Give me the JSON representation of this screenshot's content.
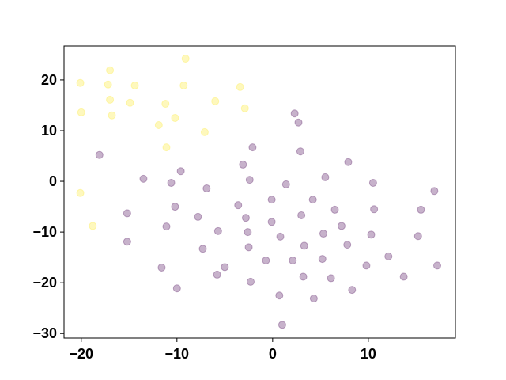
{
  "chart_data": {
    "type": "scatter",
    "xlim": [
      -21.8,
      19.1
    ],
    "ylim": [
      -30.9,
      26.7
    ],
    "xticks": [
      {
        "value": -20,
        "label": "−20"
      },
      {
        "value": -10,
        "label": "−10"
      },
      0,
      10
    ],
    "yticks": [
      {
        "value": -30,
        "label": "−30"
      },
      {
        "value": -20,
        "label": "−20"
      },
      {
        "value": -10,
        "label": "−10"
      },
      0,
      10,
      20
    ],
    "alpha": 0.3,
    "series": [
      {
        "color": "#fde725",
        "x": [
          -20.1,
          -20.0,
          -17.0,
          -17.2,
          -17.0,
          -16.8,
          -14.4,
          -14.9,
          -9.1,
          -9.3,
          -11.2,
          -10.2,
          -11.9,
          -11.1,
          -6.0,
          -7.1,
          -3.4,
          -2.9,
          -20.1,
          -18.8
        ],
        "y": [
          19.4,
          13.6,
          21.9,
          19.1,
          16.1,
          13.0,
          18.9,
          15.5,
          24.2,
          18.9,
          15.3,
          12.5,
          11.1,
          6.7,
          15.8,
          9.7,
          18.6,
          14.4,
          -2.3,
          -8.8
        ]
      },
      {
        "color": "#440154",
        "x": [
          -18.1,
          -13.5,
          -15.2,
          -15.2,
          -9.6,
          -10.6,
          -10.2,
          -11.1,
          -11.6,
          -10.0,
          -6.9,
          -7.8,
          -7.3,
          -5.7,
          -5.0,
          -5.8,
          -2.1,
          -3.1,
          -2.4,
          -3.6,
          -2.8,
          -2.6,
          -2.5,
          -2.3,
          -0.7,
          -0.1,
          -0.1,
          0.8,
          0.7,
          1.0,
          1.4,
          2.3,
          2.7,
          2.9,
          3.0,
          3.3,
          2.1,
          3.2,
          4.2,
          4.3,
          5.5,
          5.3,
          5.2,
          6.1,
          6.5,
          7.2,
          7.8,
          8.3,
          7.9,
          10.5,
          10.6,
          10.3,
          9.8,
          12.1,
          13.7,
          15.2,
          15.5,
          16.9,
          17.2
        ],
        "y": [
          5.2,
          0.5,
          -6.3,
          -11.9,
          2.0,
          -0.3,
          -5.0,
          -8.9,
          -17.0,
          -21.1,
          -1.4,
          -7.0,
          -13.3,
          -9.8,
          -16.9,
          -18.4,
          6.7,
          3.3,
          0.3,
          -4.7,
          -7.2,
          -10.0,
          -13.0,
          -19.8,
          -15.6,
          -3.6,
          -8.0,
          -10.9,
          -22.5,
          -28.3,
          -0.6,
          13.4,
          11.6,
          5.9,
          -6.7,
          -12.7,
          -15.6,
          -18.8,
          -3.6,
          -23.1,
          0.8,
          -10.3,
          -15.3,
          -19.1,
          -5.6,
          -8.8,
          -12.5,
          -21.4,
          3.8,
          -0.3,
          -5.5,
          -10.5,
          -16.6,
          -14.8,
          -18.8,
          -10.8,
          -5.6,
          -1.9,
          -16.6
        ]
      }
    ]
  }
}
